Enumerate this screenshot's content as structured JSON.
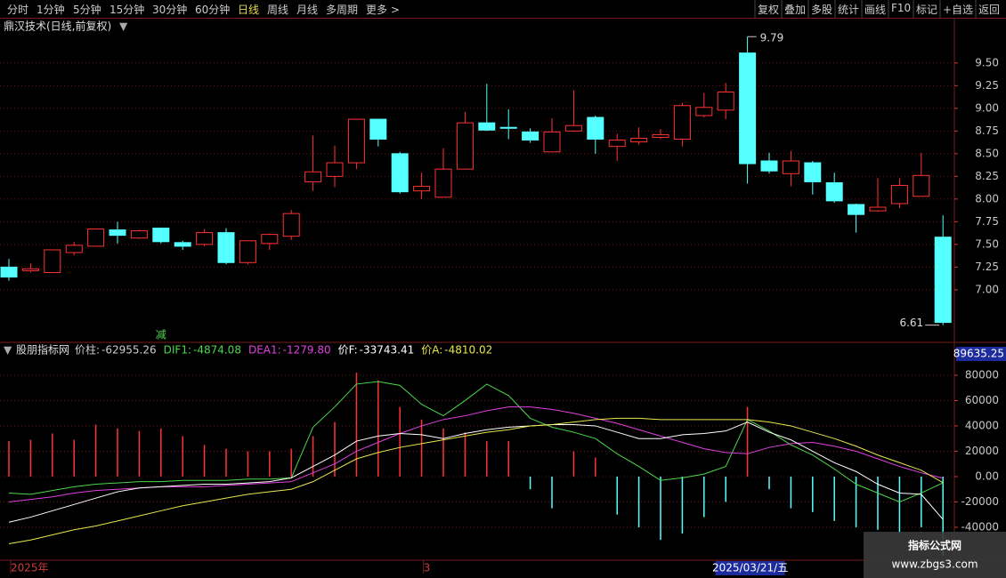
{
  "toolbar": {
    "periods": [
      "分时",
      "1分钟",
      "5分钟",
      "15分钟",
      "30分钟",
      "60分钟",
      "日线",
      "周线",
      "月线",
      "多周期",
      "更多 >"
    ],
    "active_period_index": 6,
    "actions": [
      "复权",
      "叠加",
      "多股",
      "统计",
      "画线",
      "F10",
      "标记",
      "+自选",
      "返回"
    ]
  },
  "watermark": {
    "title": "指标公式网",
    "url": "www.zbgs3.com"
  },
  "chart_data": [
    {
      "type": "candlestick",
      "title": "鼎汉技术(日线,前复权)",
      "categories": [
        "2025年",
        null,
        null,
        null,
        null,
        null,
        null,
        null,
        null,
        null,
        null,
        null,
        null,
        null,
        null,
        null,
        null,
        null,
        null,
        "3",
        null,
        null,
        null,
        null,
        null,
        null,
        null,
        null,
        null,
        null,
        null,
        null,
        null,
        null,
        null,
        null,
        null,
        null,
        null,
        null,
        null,
        null,
        null,
        null
      ],
      "open": [
        7.25,
        7.21,
        7.19,
        7.41,
        7.48,
        7.66,
        7.57,
        7.68,
        7.52,
        7.5,
        7.63,
        7.3,
        7.51,
        7.59,
        8.19,
        8.25,
        8.4,
        8.88,
        8.5,
        8.09,
        8.02,
        8.33,
        8.84,
        8.79,
        8.74,
        8.52,
        8.75,
        8.9,
        8.58,
        8.63,
        8.68,
        8.66,
        8.92,
        8.98,
        9.61,
        8.42,
        8.28,
        8.4,
        8.18,
        7.94,
        7.87,
        7.95,
        8.03,
        7.58
      ],
      "high": [
        7.34,
        7.29,
        7.44,
        7.53,
        7.67,
        7.75,
        7.66,
        7.68,
        7.54,
        7.67,
        7.68,
        7.54,
        7.62,
        7.88,
        8.7,
        8.59,
        8.88,
        8.88,
        8.52,
        8.29,
        8.56,
        8.96,
        9.27,
        8.99,
        8.78,
        8.89,
        9.2,
        8.92,
        8.72,
        8.79,
        8.77,
        9.06,
        9.17,
        9.28,
        9.79,
        8.51,
        8.53,
        8.42,
        8.29,
        7.95,
        8.23,
        8.23,
        8.51,
        7.82
      ],
      "low": [
        7.1,
        7.19,
        7.19,
        7.38,
        7.48,
        7.51,
        7.56,
        7.51,
        7.44,
        7.48,
        7.28,
        7.28,
        7.44,
        7.55,
        8.09,
        8.13,
        8.33,
        8.58,
        8.06,
        8.0,
        8.02,
        8.33,
        8.75,
        8.66,
        8.62,
        8.52,
        8.74,
        8.5,
        8.42,
        8.6,
        8.66,
        8.58,
        8.9,
        8.88,
        8.17,
        8.28,
        8.14,
        8.05,
        7.96,
        7.63,
        7.86,
        7.9,
        8.03,
        6.61
      ],
      "close": [
        7.14,
        7.23,
        7.44,
        7.49,
        7.67,
        7.6,
        7.65,
        7.53,
        7.48,
        7.63,
        7.3,
        7.54,
        7.61,
        7.84,
        8.3,
        8.4,
        8.88,
        8.66,
        8.08,
        8.14,
        8.33,
        8.84,
        8.76,
        8.78,
        8.65,
        8.74,
        8.81,
        8.66,
        8.65,
        8.67,
        8.71,
        9.03,
        9.01,
        9.18,
        8.39,
        8.31,
        8.42,
        8.19,
        7.98,
        7.83,
        7.91,
        8.15,
        8.26,
        6.64
      ],
      "up_color": "#ff3232",
      "down_color": "#54ffff",
      "ylim": [
        6.44,
        9.9
      ],
      "yticks": [
        {
          "value": 7,
          "label": "7.00"
        },
        7.25,
        {
          "value": 7.5,
          "label": "7.50"
        },
        7.75,
        {
          "value": 8,
          "label": "8.00"
        },
        8.25,
        {
          "value": 8.5,
          "label": "8.50"
        },
        8.75,
        {
          "value": 9,
          "label": "9.00"
        },
        9.25,
        {
          "value": 9.5,
          "label": "9.50"
        }
      ],
      "signal_text": "减",
      "cursor_label": "2025/03/21/五"
    },
    {
      "type": "indicator",
      "title": "股朋指标网",
      "ylim": [
        -66000,
        92600
      ],
      "yticks": [
        80000,
        60000,
        40000,
        20000,
        {
          "value": 0,
          "label": "0.00"
        },
        -20000,
        -40000
      ],
      "axis_top_value": 89635.25,
      "series": [
        {
          "name": "价柱:",
          "kind": "bar",
          "color": "#ff3232",
          "negative_color": "#54ffff",
          "last_label": "-62955.26",
          "values": [
            28000,
            29000,
            34000,
            29000,
            41000,
            38000,
            36000,
            38000,
            32000,
            25000,
            22000,
            20000,
            20000,
            22000,
            32000,
            43000,
            82000,
            76000,
            55000,
            45000,
            38000,
            35000,
            28000,
            28000,
            -10000,
            -25000,
            20000,
            15000,
            -30000,
            -40000,
            -50000,
            -45000,
            -32000,
            -20000,
            55000,
            -10000,
            -25000,
            -28000,
            -35000,
            -40000,
            -42000,
            -45000,
            -40000,
            -62955.26
          ]
        },
        {
          "name": "DIF1:",
          "kind": "line",
          "color": "#4cd64c",
          "last_label": "-4874.08",
          "values": [
            -13000,
            -14000,
            -11000,
            -8000,
            -6000,
            -5000,
            -4000,
            -4000,
            -3000,
            -3000,
            -3000,
            -2000,
            -2000,
            -1000,
            39000,
            55000,
            73000,
            75000,
            72000,
            57000,
            48000,
            60000,
            73000,
            64000,
            46000,
            39000,
            35000,
            30000,
            18000,
            8000,
            -3000,
            -1000,
            2000,
            8000,
            45000,
            36000,
            25000,
            17000,
            6000,
            -6000,
            -13000,
            -20000,
            -13000,
            -4874.08
          ]
        },
        {
          "name": "DEA1:",
          "kind": "line",
          "color": "#e040e0",
          "last_label": "-1279.80",
          "values": [
            -20000,
            -18000,
            -16000,
            -13000,
            -11000,
            -10000,
            -9000,
            -8000,
            -8000,
            -8000,
            -7000,
            -6000,
            -5000,
            -4000,
            3000,
            10000,
            20000,
            27000,
            34000,
            40000,
            45000,
            48000,
            52000,
            55000,
            55000,
            53000,
            50000,
            46000,
            42000,
            37000,
            32000,
            27000,
            22000,
            19000,
            18000,
            23000,
            26000,
            27000,
            24000,
            20000,
            14000,
            8000,
            3000,
            -1279.8
          ]
        },
        {
          "name": "价F:",
          "kind": "line",
          "color": "#ffffff",
          "last_label": "-33743.41",
          "values": [
            -36000,
            -32000,
            -27000,
            -22000,
            -17000,
            -12000,
            -9000,
            -8000,
            -7000,
            -6000,
            -6000,
            -5000,
            -4000,
            -1000,
            8000,
            17000,
            28000,
            32000,
            34000,
            33000,
            30000,
            34000,
            37000,
            39000,
            40000,
            41000,
            41000,
            40000,
            35000,
            30000,
            30000,
            33000,
            34000,
            36000,
            43000,
            35000,
            29000,
            20000,
            11000,
            4000,
            -6000,
            -13000,
            -14000,
            -33743.41
          ]
        },
        {
          "name": "价A:",
          "kind": "line",
          "color": "#e8e84c",
          "last_label": "-4810.02",
          "values": [
            -53000,
            -50000,
            -46000,
            -42000,
            -39000,
            -35000,
            -31000,
            -27000,
            -23000,
            -20000,
            -17000,
            -14000,
            -12000,
            -10000,
            -4000,
            5000,
            14000,
            19000,
            23000,
            26000,
            29000,
            32000,
            35000,
            37000,
            40000,
            41000,
            43000,
            45000,
            46000,
            46000,
            45000,
            45000,
            45000,
            45000,
            45000,
            43000,
            40000,
            35000,
            30000,
            24000,
            17000,
            11000,
            5000,
            -4810.02
          ]
        }
      ]
    }
  ]
}
